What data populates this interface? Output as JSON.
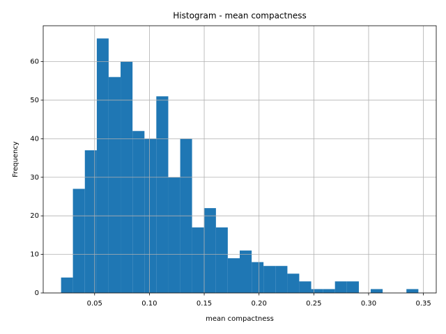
{
  "chart_data": {
    "type": "histogram",
    "title": "Histogram - mean compactness",
    "x_label": "mean compactness",
    "y_label": "Frequency",
    "bins": [
      0.0194,
      0.0302,
      0.0411,
      0.052,
      0.0628,
      0.0737,
      0.0846,
      0.0955,
      0.1063,
      0.1172,
      0.1281,
      0.1389,
      0.1498,
      0.1607,
      0.1715,
      0.1824,
      0.1933,
      0.2041,
      0.215,
      0.2259,
      0.2367,
      0.2476,
      0.2585,
      0.2693,
      0.2802,
      0.2911,
      0.3019,
      0.3128,
      0.3237,
      0.3345,
      0.3454
    ],
    "values": [
      4,
      27,
      37,
      66,
      56,
      60,
      42,
      40,
      51,
      30,
      40,
      17,
      22,
      17,
      9,
      11,
      8,
      7,
      7,
      5,
      3,
      1,
      1,
      3,
      3,
      0,
      1,
      0,
      0,
      1
    ],
    "color": "#1f77b4",
    "xlim": [
      0.0031,
      0.3617
    ],
    "xticks": [
      0.05,
      {
        "value": 0.1,
        "label": "0.10"
      },
      0.15,
      {
        "value": 0.2,
        "label": "0.20"
      },
      0.25,
      {
        "value": 0.3,
        "label": "0.30"
      },
      0.35
    ],
    "ylim": [
      0,
      69.3
    ],
    "yticks": [
      0,
      10,
      20,
      30,
      40,
      50,
      60
    ],
    "grid": true
  }
}
